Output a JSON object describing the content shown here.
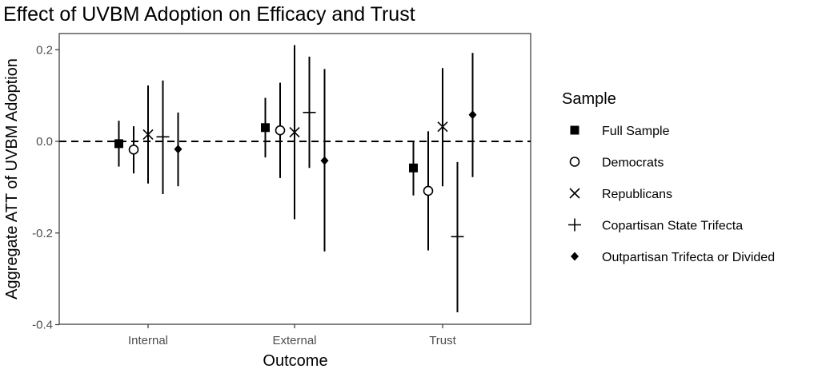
{
  "chart_data": {
    "type": "scatter",
    "title": "Effect of UVBM Adoption on Efficacy and Trust",
    "xlabel": "Outcome",
    "ylabel": "Aggregate ATT of UVBM Adoption",
    "categories": [
      "Internal",
      "External",
      "Trust"
    ],
    "ylim": [
      -0.4,
      0.25
    ],
    "yticks": [
      -0.4,
      -0.2,
      0.0,
      0.2
    ],
    "ytick_labels": [
      "-0.4",
      "-0.2",
      "0.0",
      "0.2"
    ],
    "reference_line": {
      "y": 0,
      "style": "dashed"
    },
    "grid": false,
    "legend": {
      "title": "Sample",
      "placement": "right"
    },
    "series": [
      {
        "name": "Full Sample",
        "shape": "square",
        "estimates": [
          -0.005,
          0.03,
          -0.058
        ],
        "ci_low": [
          -0.055,
          -0.035,
          -0.118
        ],
        "ci_high": [
          0.045,
          0.095,
          0.0
        ]
      },
      {
        "name": "Democrats",
        "shape": "circle",
        "estimates": [
          -0.018,
          0.024,
          -0.108
        ],
        "ci_low": [
          -0.07,
          -0.08,
          -0.238
        ],
        "ci_high": [
          0.033,
          0.128,
          0.022
        ]
      },
      {
        "name": "Republicans",
        "shape": "x",
        "estimates": [
          0.015,
          0.02,
          0.032
        ],
        "ci_low": [
          -0.092,
          -0.17,
          -0.098
        ],
        "ci_high": [
          0.122,
          0.21,
          0.16
        ]
      },
      {
        "name": "Copartisan State Trifecta",
        "shape": "plus",
        "estimates": [
          0.01,
          0.063,
          -0.208
        ],
        "ci_low": [
          -0.115,
          -0.058,
          -0.373
        ],
        "ci_high": [
          0.133,
          0.185,
          -0.045
        ]
      },
      {
        "name": "Outpartisan Trifecta or Divided",
        "shape": "diamond",
        "estimates": [
          -0.017,
          -0.042,
          0.058
        ],
        "ci_low": [
          -0.098,
          -0.24,
          -0.078
        ],
        "ci_high": [
          0.063,
          0.158,
          0.193
        ]
      }
    ]
  }
}
